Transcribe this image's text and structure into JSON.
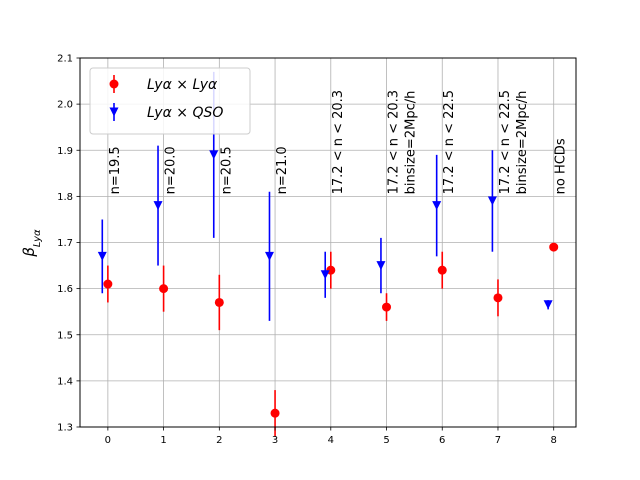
{
  "chart_data": {
    "type": "scatter",
    "title": "",
    "xlabel": "",
    "ylabel": "β",
    "ylabel_sub": "Lyα",
    "xlim": [
      -0.5,
      8.4
    ],
    "ylim": [
      1.3,
      2.1
    ],
    "x_ticks": [
      0,
      1,
      2,
      3,
      4,
      5,
      6,
      7,
      8
    ],
    "y_ticks": [
      1.3,
      1.4,
      1.5,
      1.6,
      1.7,
      1.8,
      1.9,
      2.0,
      2.1
    ],
    "grid": true,
    "legend_placement": "top-left",
    "series": [
      {
        "name": "Lyα × Lyα",
        "marker": "circle",
        "color": "#ff0000",
        "x": [
          0,
          1,
          2,
          3,
          4,
          5,
          6,
          7,
          8
        ],
        "y": [
          1.61,
          1.6,
          1.57,
          1.33,
          1.64,
          1.56,
          1.64,
          1.58,
          1.69
        ],
        "yerr": [
          0.04,
          0.05,
          0.06,
          0.05,
          0.04,
          0.03,
          0.04,
          0.04,
          0.0
        ]
      },
      {
        "name": "Lyα × QSO",
        "marker": "triangle-down",
        "color": "#0000ff",
        "x": [
          -0.1,
          0.9,
          1.9,
          2.9,
          3.9,
          4.9,
          5.9,
          6.9,
          7.9
        ],
        "y": [
          1.67,
          1.78,
          1.89,
          1.67,
          1.63,
          1.65,
          1.78,
          1.79,
          1.565
        ],
        "yerr": [
          0.08,
          0.13,
          0.18,
          0.14,
          0.05,
          0.06,
          0.11,
          0.11,
          0.01
        ]
      }
    ],
    "annotations": [
      {
        "x": 0,
        "text": "n=19.5"
      },
      {
        "x": 1,
        "text": "n=20.0"
      },
      {
        "x": 2,
        "text": "n=20.5"
      },
      {
        "x": 3,
        "text": "n=21.0"
      },
      {
        "x": 4,
        "text": "17.2 < n < 20.3"
      },
      {
        "x": 5,
        "text": "17.2 < n < 20.3"
      },
      {
        "x": 5,
        "text": "binsize=2Mpc/h"
      },
      {
        "x": 6,
        "text": "17.2 < n < 22.5"
      },
      {
        "x": 7,
        "text": "17.2 < n < 22.5"
      },
      {
        "x": 7,
        "text": "binsize=2Mpc/h"
      },
      {
        "x": 8,
        "text": "no HCDs"
      }
    ]
  }
}
